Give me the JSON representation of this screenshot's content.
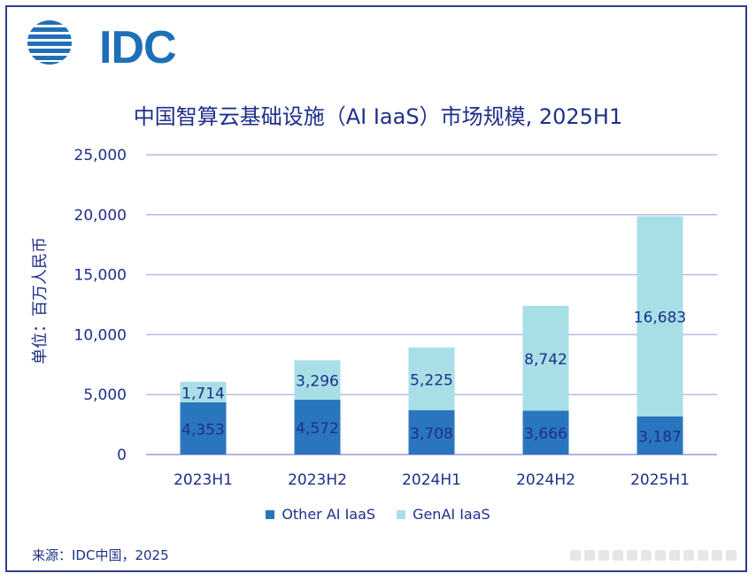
{
  "logo": {
    "text": "IDC"
  },
  "source": "来源：IDC中国，2025",
  "colors": {
    "other": "#2a76be",
    "genai": "#a8dfe6",
    "text": "#1f2f8a",
    "grid": "#b8b8e8"
  },
  "chart_data": {
    "type": "bar",
    "stacked": true,
    "title": "中国智算云基础设施（AI IaaS）市场规模, 2025H1",
    "ylabel": "单位：百万人民币",
    "xlabel": "",
    "categories": [
      "2023H1",
      "2023H2",
      "2024H1",
      "2024H2",
      "2025H1"
    ],
    "series": [
      {
        "name": "Other AI IaaS",
        "values": [
          4353,
          4572,
          3708,
          3666,
          3187
        ],
        "labels": [
          "4,353",
          "4,572",
          "3,708",
          "3,666",
          "3,187"
        ]
      },
      {
        "name": "GenAI IaaS",
        "values": [
          1714,
          3296,
          5225,
          8742,
          16683
        ],
        "labels": [
          "1,714",
          "3,296",
          "5,225",
          "8,742",
          "16,683"
        ]
      }
    ],
    "ylim": [
      0,
      25000
    ],
    "yticks": [
      "0",
      "5,000",
      "10,000",
      "15,000",
      "20,000",
      "25,000"
    ],
    "grid": true,
    "legend": "bottom"
  }
}
